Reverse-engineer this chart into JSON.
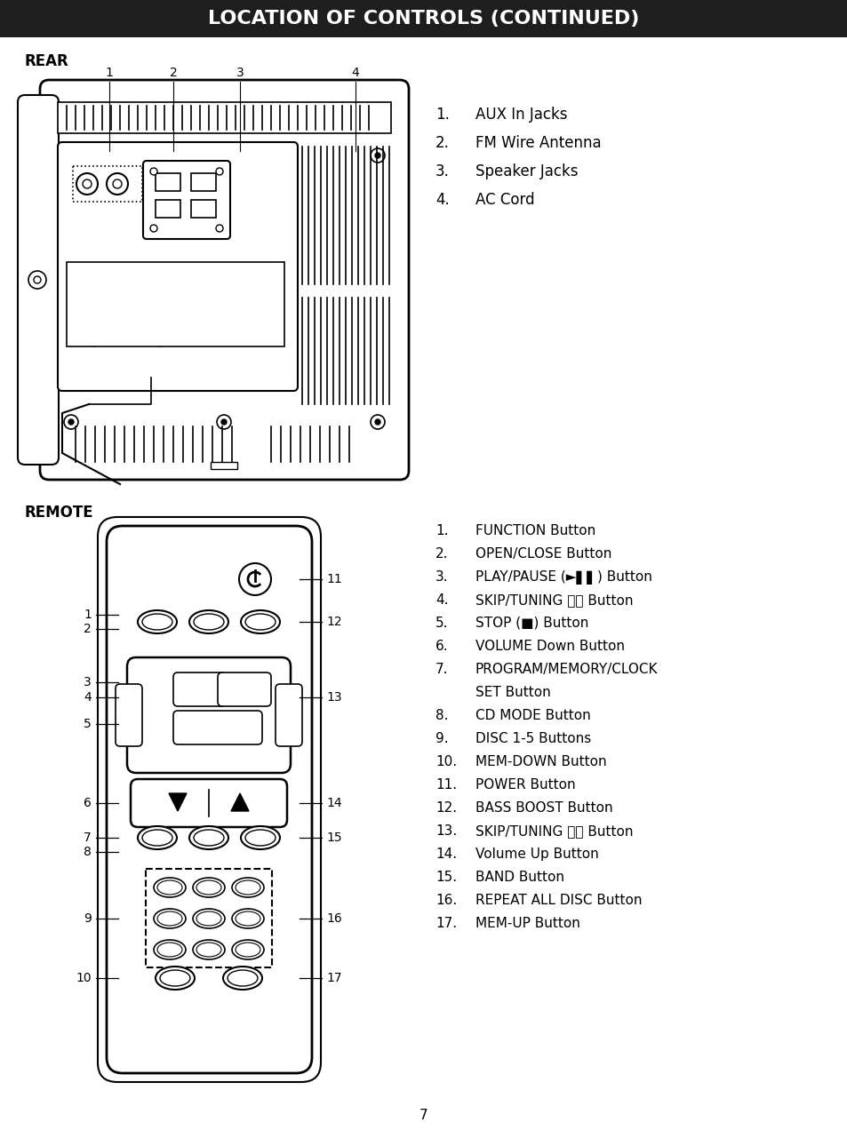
{
  "title": "LOCATION OF CONTROLS (CONTINUED)",
  "title_bg": "#1e1e1e",
  "title_color": "#ffffff",
  "bg_color": "#ffffff",
  "text_color": "#000000",
  "rear_label": "REAR",
  "remote_label": "REMOTE",
  "rear_items": [
    [
      "1.",
      "AUX In Jacks"
    ],
    [
      "2.",
      "FM Wire Antenna"
    ],
    [
      "3.",
      "Speaker Jacks"
    ],
    [
      "4.",
      "AC Cord"
    ]
  ],
  "remote_items": [
    [
      "1.",
      "FUNCTION Button"
    ],
    [
      "2.",
      "OPEN/CLOSE Button"
    ],
    [
      "3.",
      "PLAY/PAUSE (►▌▌) Button"
    ],
    [
      "4.",
      "SKIP/TUNING ⏮⏮ Button"
    ],
    [
      "5.",
      "STOP (■) Button"
    ],
    [
      "6.",
      "VOLUME Down Button"
    ],
    [
      "7.",
      "PROGRAM/MEMORY/CLOCK"
    ],
    [
      "",
      "SET Button"
    ],
    [
      "8.",
      "CD MODE Button"
    ],
    [
      "9.",
      "DISC 1-5 Buttons"
    ],
    [
      "10.",
      "MEM-DOWN Button"
    ],
    [
      "11.",
      "POWER Button"
    ],
    [
      "12.",
      "BASS BOOST Button"
    ],
    [
      "13.",
      "SKIP/TUNING ⏭⏭ Button"
    ],
    [
      "14.",
      "Volume Up Button"
    ],
    [
      "15.",
      "BAND Button"
    ],
    [
      "16.",
      "REPEAT ALL DISC Button"
    ],
    [
      "17.",
      "MEM-UP Button"
    ]
  ],
  "page_number": "7"
}
